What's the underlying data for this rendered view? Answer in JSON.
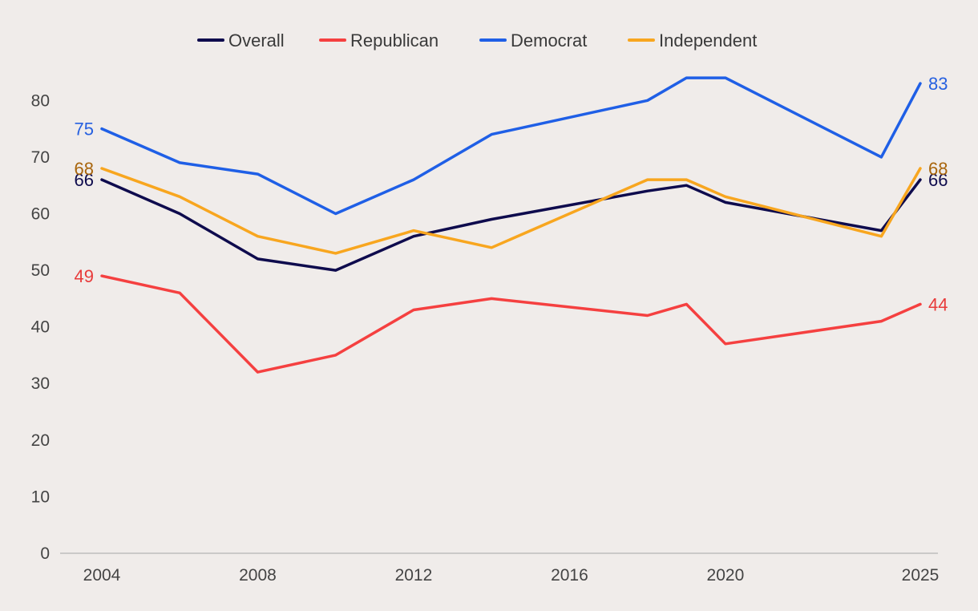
{
  "chart_data": {
    "type": "line",
    "title": "",
    "xlabel": "",
    "ylabel": "",
    "ylim": [
      0,
      85
    ],
    "xlim": [
      2003.2,
      2026.1
    ],
    "grid": false,
    "legend_position": "top-center",
    "y_ticks": [
      0,
      10,
      20,
      30,
      40,
      50,
      60,
      70,
      80
    ],
    "x_ticks": [
      2004,
      2008,
      2012,
      2016,
      2020,
      2025
    ],
    "series": [
      {
        "name": "Overall",
        "color": "#0e0b4d",
        "label_color": "#0e0b4d",
        "x": [
          2004,
          2006,
          2008,
          2010,
          2012,
          2014,
          2018,
          2019,
          2020,
          2024,
          2025
        ],
        "values": [
          66,
          60,
          52,
          50,
          56,
          59,
          64,
          65,
          62,
          57,
          66
        ],
        "start_label": "66",
        "end_label": "66"
      },
      {
        "name": "Republican",
        "color": "#f54040",
        "label_color": "#e83b3b",
        "x": [
          2004,
          2006,
          2008,
          2010,
          2012,
          2014,
          2018,
          2019,
          2020,
          2024,
          2025
        ],
        "values": [
          49,
          46,
          32,
          35,
          43,
          45,
          42,
          44,
          37,
          41,
          44
        ],
        "start_label": "49",
        "end_label": "44"
      },
      {
        "name": "Democrat",
        "color": "#1f5fe6",
        "label_color": "#2660e0",
        "x": [
          2004,
          2006,
          2008,
          2010,
          2012,
          2014,
          2018,
          2019,
          2020,
          2024,
          2025
        ],
        "values": [
          75,
          69,
          67,
          60,
          66,
          74,
          80,
          84,
          84,
          70,
          83
        ],
        "start_label": "75",
        "end_label": "83"
      },
      {
        "name": "Independent",
        "color": "#f8a61f",
        "label_color": "#a8650c",
        "x": [
          2004,
          2006,
          2008,
          2010,
          2012,
          2014,
          2018,
          2019,
          2020,
          2024,
          2025
        ],
        "values": [
          68,
          63,
          56,
          53,
          57,
          54,
          66,
          66,
          63,
          56,
          68
        ],
        "start_label": "68",
        "end_label": "68"
      }
    ]
  }
}
